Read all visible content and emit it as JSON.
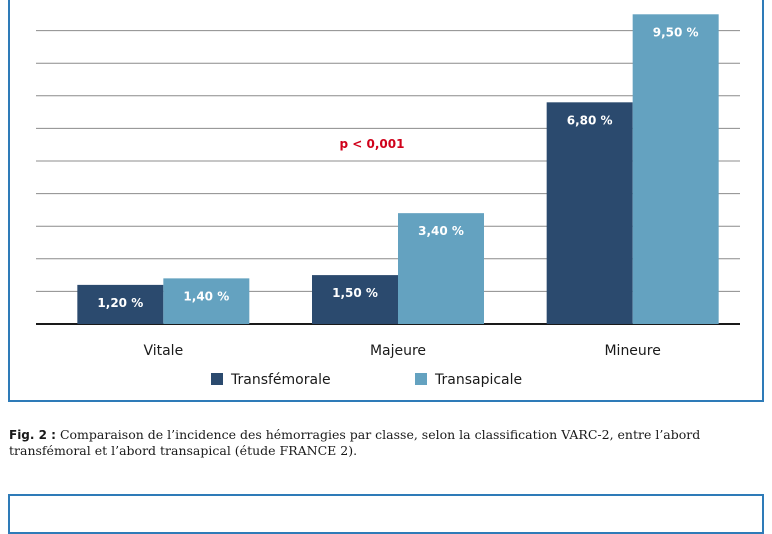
{
  "chart_data": {
    "type": "bar",
    "categories": [
      "Vitale",
      "Majeure",
      "Mineure"
    ],
    "series": [
      {
        "name": "Transfémorale",
        "values": [
          1.2,
          1.5,
          6.8
        ],
        "labels": [
          "1,20 %",
          "1,50 %",
          "6,80 %"
        ],
        "color": "#2b4a6e"
      },
      {
        "name": "Transapicale",
        "values": [
          1.4,
          3.4,
          9.5
        ],
        "labels": [
          "1,40 %",
          "3,40 %",
          "9,50 %"
        ],
        "color": "#64a2c0"
      }
    ],
    "annotation": "p < 0,001",
    "annotation_color": "#d0021b",
    "ylim": [
      0,
      10
    ],
    "grid": true,
    "legend": "bottom"
  },
  "caption": {
    "label": "Fig. 2 :",
    "text": "Comparaison de l’incidence des hémorragies par classe, selon la classification VARC-2, entre l’abord transfémoral et l’abord transapical (étude FRANCE 2)."
  },
  "frame_color": "#2e7bb8"
}
